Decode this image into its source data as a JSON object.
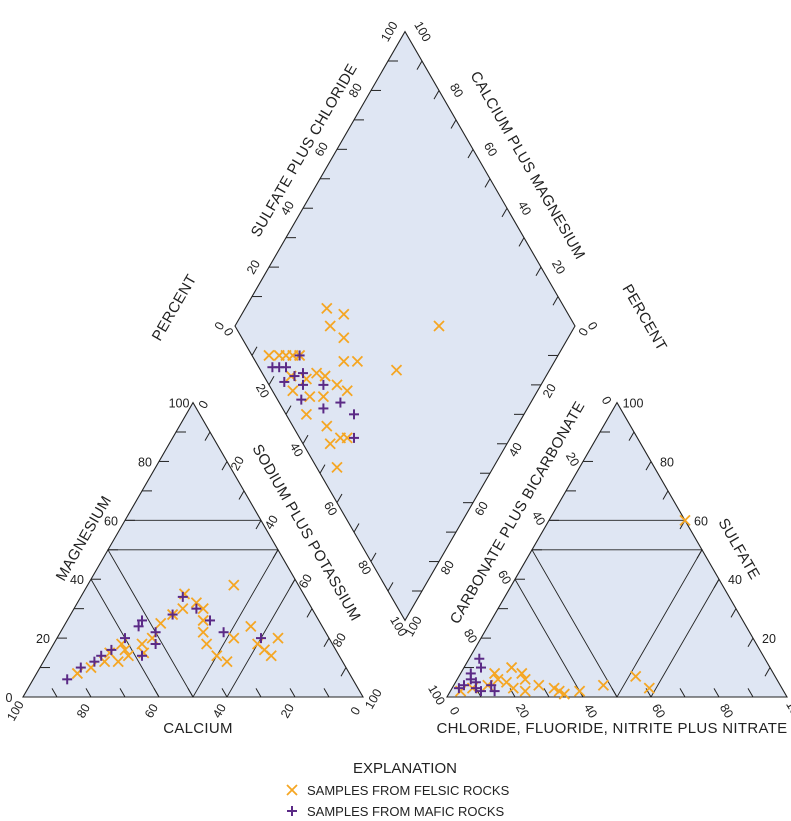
{
  "chart_data": {
    "type": "scatter",
    "subtype": "piper-trilinear-diagram",
    "colors": {
      "felsic": "#f5a623",
      "mafic": "#5b2a86",
      "fill": "#dfe6f3",
      "stroke": "#222222"
    },
    "cation_triangle": {
      "corner_labels": [
        "Magnesium",
        "Calcium",
        "Sodium plus potassium"
      ],
      "axis_labels": {
        "magnesium": "MAGNESIUM",
        "calcium": "CALCIUM",
        "sodium_potassium": "SODIUM PLUS POTASSIUM"
      },
      "ticks": [
        "0",
        "20",
        "40",
        "60",
        "80",
        "100"
      ]
    },
    "anion_triangle": {
      "axis_labels": {
        "sulfate": "SULFATE",
        "chloride": "CHLORIDE, FLUORIDE, NITRITE PLUS NITRATE",
        "carbonate": "CARBONATE PLUS BICARBONATE"
      },
      "ticks": [
        "0",
        "20",
        "40",
        "60",
        "80",
        "100"
      ]
    },
    "diamond": {
      "axis_labels": {
        "sulfate_chloride": "SULFATE PLUS CHLORIDE",
        "calcium_magnesium": "CALCIUM PLUS MAGNESIUM",
        "percent_left": "PERCENT",
        "percent_right": "PERCENT"
      },
      "ticks": [
        "0",
        "20",
        "40",
        "60",
        "80",
        "100"
      ]
    },
    "series": [
      {
        "name": "SAMPLES FROM FELSIC ROCKS",
        "marker": "x",
        "cation_points": [
          {
            "mg": 8,
            "na": 12
          },
          {
            "mg": 10,
            "na": 15
          },
          {
            "mg": 12,
            "na": 18
          },
          {
            "mg": 15,
            "na": 18
          },
          {
            "mg": 12,
            "na": 22
          },
          {
            "mg": 14,
            "na": 24
          },
          {
            "mg": 16,
            "na": 22
          },
          {
            "mg": 18,
            "na": 20
          },
          {
            "mg": 15,
            "na": 28
          },
          {
            "mg": 18,
            "na": 26
          },
          {
            "mg": 20,
            "na": 28
          },
          {
            "mg": 25,
            "na": 28
          },
          {
            "mg": 28,
            "na": 30
          },
          {
            "mg": 30,
            "na": 32
          },
          {
            "mg": 35,
            "na": 30
          },
          {
            "mg": 32,
            "na": 35
          },
          {
            "mg": 30,
            "na": 38
          },
          {
            "mg": 26,
            "na": 40
          },
          {
            "mg": 22,
            "na": 42
          },
          {
            "mg": 18,
            "na": 45
          },
          {
            "mg": 14,
            "na": 50
          },
          {
            "mg": 12,
            "na": 54
          },
          {
            "mg": 20,
            "na": 52
          },
          {
            "mg": 24,
            "na": 55
          },
          {
            "mg": 18,
            "na": 60
          },
          {
            "mg": 16,
            "na": 63
          },
          {
            "mg": 20,
            "na": 65
          },
          {
            "mg": 14,
            "na": 66
          },
          {
            "mg": 38,
            "na": 43
          }
        ],
        "anion_points": [
          {
            "so4": 2,
            "cl": 3
          },
          {
            "so4": 3,
            "cl": 6
          },
          {
            "so4": 4,
            "cl": 10
          },
          {
            "so4": 6,
            "cl": 12
          },
          {
            "so4": 8,
            "cl": 10
          },
          {
            "so4": 5,
            "cl": 15
          },
          {
            "so4": 3,
            "cl": 18
          },
          {
            "so4": 6,
            "cl": 20
          },
          {
            "so4": 8,
            "cl": 18
          },
          {
            "so4": 10,
            "cl": 14
          },
          {
            "so4": 4,
            "cl": 25
          },
          {
            "so4": 2,
            "cl": 22
          },
          {
            "so4": 3,
            "cl": 30
          },
          {
            "so4": 2,
            "cl": 32
          },
          {
            "so4": 1,
            "cl": 34
          },
          {
            "so4": 2,
            "cl": 38
          },
          {
            "so4": 4,
            "cl": 44
          },
          {
            "so4": 7,
            "cl": 52
          },
          {
            "so4": 3,
            "cl": 58
          },
          {
            "so4": 60,
            "cl": 40
          }
        ],
        "diamond_points": [
          {
            "so4cl": 5,
            "cami": 85
          },
          {
            "so4cl": 8,
            "cami": 82
          },
          {
            "so4cl": 10,
            "cami": 80
          },
          {
            "so4cl": 12,
            "cami": 78
          },
          {
            "so4cl": 14,
            "cami": 76
          },
          {
            "so4cl": 8,
            "cami": 75
          },
          {
            "so4cl": 6,
            "cami": 72
          },
          {
            "so4cl": 12,
            "cami": 70
          },
          {
            "so4cl": 16,
            "cami": 68
          },
          {
            "so4cl": 18,
            "cami": 65
          },
          {
            "so4cl": 10,
            "cami": 66
          },
          {
            "so4cl": 6,
            "cami": 64
          },
          {
            "so4cl": 14,
            "cami": 62
          },
          {
            "so4cl": 20,
            "cami": 60
          },
          {
            "so4cl": 22,
            "cami": 56
          },
          {
            "so4cl": 10,
            "cami": 56
          },
          {
            "so4cl": 8,
            "cami": 52
          },
          {
            "so4cl": 12,
            "cami": 50
          },
          {
            "so4cl": 14,
            "cami": 48
          },
          {
            "so4cl": 6,
            "cami": 46
          },
          {
            "so4cl": 26,
            "cami": 62
          },
          {
            "so4cl": 30,
            "cami": 66
          },
          {
            "so4cl": 34,
            "cami": 70
          },
          {
            "so4cl": 30,
            "cami": 58
          },
          {
            "so4cl": 40,
            "cami": 45
          },
          {
            "so4cl": 60,
            "cami": 40
          },
          {
            "so4cl": 30,
            "cami": 76
          },
          {
            "so4cl": 28,
            "cami": 72
          }
        ]
      },
      {
        "name": "SAMPLES FROM MAFIC ROCKS",
        "marker": "+",
        "cation_points": [
          {
            "mg": 6,
            "na": 10
          },
          {
            "mg": 10,
            "na": 12
          },
          {
            "mg": 12,
            "na": 15
          },
          {
            "mg": 14,
            "na": 16
          },
          {
            "mg": 16,
            "na": 18
          },
          {
            "mg": 20,
            "na": 20
          },
          {
            "mg": 24,
            "na": 22
          },
          {
            "mg": 26,
            "na": 22
          },
          {
            "mg": 22,
            "na": 28
          },
          {
            "mg": 18,
            "na": 30
          },
          {
            "mg": 28,
            "na": 30
          },
          {
            "mg": 34,
            "na": 30
          },
          {
            "mg": 30,
            "na": 36
          },
          {
            "mg": 26,
            "na": 42
          },
          {
            "mg": 22,
            "na": 48
          },
          {
            "mg": 20,
            "na": 60
          },
          {
            "mg": 14,
            "na": 28
          }
        ],
        "anion_points": [
          {
            "so4": 3,
            "cl": 2
          },
          {
            "so4": 4,
            "cl": 3
          },
          {
            "so4": 6,
            "cl": 4
          },
          {
            "so4": 8,
            "cl": 3
          },
          {
            "so4": 10,
            "cl": 5
          },
          {
            "so4": 5,
            "cl": 6
          },
          {
            "so4": 3,
            "cl": 7
          },
          {
            "so4": 2,
            "cl": 9
          },
          {
            "so4": 4,
            "cl": 11
          },
          {
            "so4": 13,
            "cl": 3
          },
          {
            "so4": 2,
            "cl": 13
          }
        ],
        "diamond_points": [
          {
            "so4cl": 4,
            "cami": 82
          },
          {
            "so4cl": 6,
            "cami": 80
          },
          {
            "so4cl": 8,
            "cami": 78
          },
          {
            "so4cl": 5,
            "cami": 76
          },
          {
            "so4cl": 9,
            "cami": 74
          },
          {
            "so4cl": 12,
            "cami": 72
          },
          {
            "so4cl": 10,
            "cami": 70
          },
          {
            "so4cl": 14,
            "cami": 76
          },
          {
            "so4cl": 7,
            "cami": 68
          },
          {
            "so4cl": 16,
            "cami": 64
          },
          {
            "so4cl": 12,
            "cami": 60
          },
          {
            "so4cl": 18,
            "cami": 56
          },
          {
            "so4cl": 20,
            "cami": 50
          },
          {
            "so4cl": 16,
            "cami": 46
          }
        ]
      }
    ],
    "legend": {
      "title": "EXPLANATION",
      "placement": "bottom-center",
      "items": [
        {
          "label": "SAMPLES FROM FELSIC ROCKS",
          "marker": "x",
          "color": "#f5a623"
        },
        {
          "label": "SAMPLES FROM MAFIC ROCKS",
          "marker": "+",
          "color": "#5b2a86"
        }
      ]
    }
  }
}
